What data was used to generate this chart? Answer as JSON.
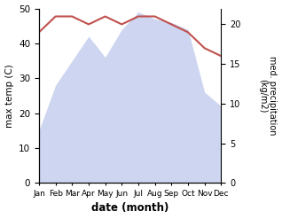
{
  "months": [
    "Jan",
    "Feb",
    "Mar",
    "Apr",
    "May",
    "Jun",
    "Jul",
    "Aug",
    "Sep",
    "Oct",
    "Nov",
    "Dec"
  ],
  "x": [
    0,
    1,
    2,
    3,
    4,
    5,
    6,
    7,
    8,
    9,
    10,
    11
  ],
  "max_temp": [
    15,
    28,
    35,
    42,
    36,
    44,
    49,
    47,
    46,
    44,
    26,
    22
  ],
  "precipitation": [
    19,
    21,
    21,
    20,
    21,
    20,
    21,
    21,
    20,
    19,
    17,
    16
  ],
  "temp_fill_color": "#b3bfe8",
  "precip_line_color": "#c0504d",
  "ylabel_left": "max temp (C)",
  "ylabel_right": "med. precipitation\n(kg/m2)",
  "xlabel": "date (month)",
  "ylim_left": [
    0,
    50
  ],
  "ylim_right": [
    0,
    22
  ],
  "yticks_left": [
    0,
    10,
    20,
    30,
    40,
    50
  ],
  "yticks_right": [
    0,
    5,
    10,
    15,
    20
  ],
  "background_color": "#ffffff"
}
